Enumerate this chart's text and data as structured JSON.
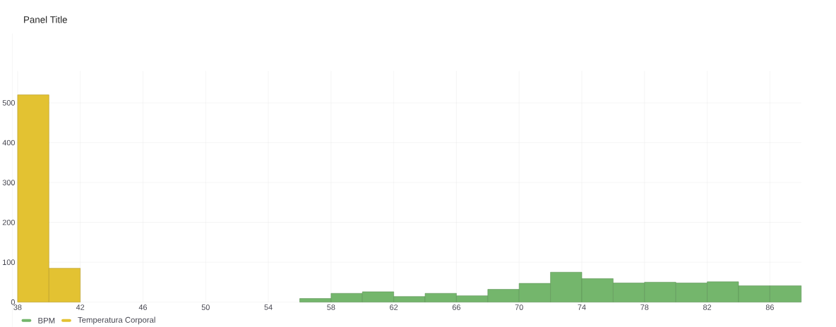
{
  "chart_data": {
    "type": "histogram",
    "title": "Panel Title",
    "bins": [
      38,
      40,
      42,
      44,
      46,
      48,
      50,
      52,
      54,
      56,
      58,
      60,
      62,
      64,
      66,
      68,
      70,
      72,
      74,
      76,
      78,
      80,
      82,
      84,
      86,
      88
    ],
    "series": [
      {
        "name": "BPM",
        "color": "#74b66c",
        "values": [
          null,
          null,
          null,
          null,
          null,
          null,
          null,
          null,
          null,
          9,
          22,
          26,
          14,
          22,
          16,
          32,
          47,
          75,
          59,
          48,
          50,
          48,
          51,
          41,
          41
        ]
      },
      {
        "name": "Temperatura Corporal",
        "color": "#e3c232",
        "values": [
          520,
          85,
          null,
          null,
          null,
          null,
          null,
          null,
          null,
          null,
          null,
          null,
          null,
          null,
          null,
          null,
          null,
          null,
          null,
          null,
          null,
          null,
          null,
          null,
          null
        ]
      }
    ],
    "xlim": [
      38,
      88
    ],
    "xticks": [
      38,
      42,
      46,
      50,
      54,
      58,
      62,
      66,
      70,
      74,
      78,
      82,
      86
    ],
    "ylim": [
      0,
      580
    ],
    "yticks": [
      0,
      100,
      200,
      300,
      400,
      500
    ],
    "grid": true,
    "legend": "bottom left"
  }
}
